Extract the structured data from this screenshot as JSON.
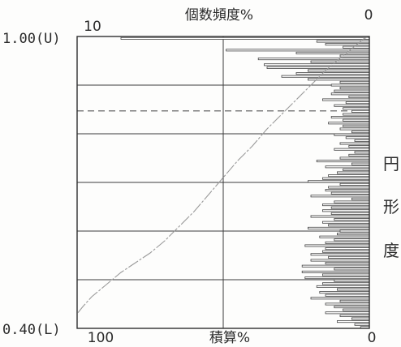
{
  "chart_data": {
    "type": "bar",
    "top_axis": {
      "label": "個数頻度%",
      "left_value": "10",
      "right_value": "0"
    },
    "bottom_axis": {
      "label": "積算%",
      "left_value": "100",
      "right_value": "0"
    },
    "y_axis": {
      "label_chars": [
        "円",
        "形",
        "度"
      ],
      "top_label": "1.00(U)",
      "bottom_label": "0.40(L)",
      "range": [
        0.4,
        1.0
      ],
      "gridlines": [
        0.9,
        0.8,
        0.7,
        0.6,
        0.5
      ]
    },
    "reference_line": {
      "y": 0.847,
      "style": "dashed"
    },
    "frequency": {
      "x_range": [
        0,
        10
      ],
      "y_values": [
        0.996,
        0.99,
        0.984,
        0.978,
        0.972,
        0.966,
        0.96,
        0.954,
        0.948,
        0.942,
        0.936,
        0.93,
        0.924,
        0.918,
        0.912,
        0.906,
        0.9,
        0.894,
        0.888,
        0.882,
        0.876,
        0.87,
        0.864,
        0.858,
        0.852,
        0.846,
        0.84,
        0.834,
        0.828,
        0.822,
        0.816,
        0.81,
        0.804,
        0.798,
        0.792,
        0.786,
        0.78,
        0.774,
        0.768,
        0.762,
        0.756,
        0.75,
        0.744,
        0.738,
        0.732,
        0.726,
        0.72,
        0.714,
        0.708,
        0.702,
        0.696,
        0.69,
        0.684,
        0.678,
        0.672,
        0.666,
        0.66,
        0.654,
        0.648,
        0.642,
        0.636,
        0.63,
        0.624,
        0.618,
        0.612,
        0.606,
        0.6,
        0.594,
        0.588,
        0.582,
        0.576,
        0.57,
        0.564,
        0.558,
        0.552,
        0.546,
        0.54,
        0.534,
        0.528,
        0.522,
        0.516,
        0.51,
        0.504,
        0.498,
        0.492,
        0.486,
        0.48,
        0.474,
        0.468,
        0.462,
        0.456,
        0.45,
        0.444,
        0.438,
        0.432,
        0.426,
        0.42,
        0.414,
        0.408,
        0.402
      ],
      "values": [
        8.5,
        1.8,
        1.5,
        0.9,
        4.9,
        2.5,
        1.0,
        3.8,
        2.0,
        3.6,
        3.5,
        2.1,
        2.5,
        3.0,
        2.1,
        1.0,
        1.3,
        1.0,
        1.2,
        1.3,
        0.7,
        1.6,
        0.8,
        1.2,
        0.9,
        0.6,
        0.9,
        1.3,
        0.9,
        1.4,
        0.9,
        1.0,
        0.6,
        1.2,
        0.8,
        0.5,
        1.0,
        0.7,
        1.2,
        0.5,
        0.7,
        1.0,
        1.8,
        0.6,
        1.5,
        0.9,
        1.1,
        1.4,
        1.6,
        2.1,
        1.0,
        1.4,
        1.5,
        1.3,
        2.0,
        0.6,
        1.2,
        1.6,
        1.3,
        1.6,
        1.3,
        2.0,
        1.2,
        1.6,
        1.4,
        2.1,
        1.0,
        1.1,
        1.7,
        1.2,
        1.5,
        2.2,
        1.5,
        1.6,
        2.0,
        1.4,
        2.0,
        1.5,
        2.3,
        1.2,
        2.3,
        1.6,
        2.2,
        1.2,
        1.6,
        1.8,
        1.1,
        1.7,
        1.5,
        2.0,
        1.0,
        1.5,
        1.2,
        0.9,
        1.5,
        1.0,
        0.6,
        1.1,
        0.5,
        0.3
      ]
    },
    "cumulative": {
      "x_range": [
        100,
        0
      ],
      "points": [
        [
          0,
          1.0
        ],
        [
          2,
          0.995
        ],
        [
          4,
          0.985
        ],
        [
          7,
          0.97
        ],
        [
          10,
          0.955
        ],
        [
          15,
          0.93
        ],
        [
          20,
          0.9
        ],
        [
          25,
          0.87
        ],
        [
          30,
          0.84
        ],
        [
          35,
          0.81
        ],
        [
          40,
          0.775
        ],
        [
          45,
          0.745
        ],
        [
          50,
          0.71
        ],
        [
          55,
          0.675
        ],
        [
          60,
          0.64
        ],
        [
          65,
          0.61
        ],
        [
          70,
          0.58
        ],
        [
          75,
          0.555
        ],
        [
          80,
          0.535
        ],
        [
          85,
          0.515
        ],
        [
          90,
          0.49
        ],
        [
          95,
          0.465
        ],
        [
          98,
          0.445
        ],
        [
          100,
          0.43
        ]
      ]
    }
  }
}
